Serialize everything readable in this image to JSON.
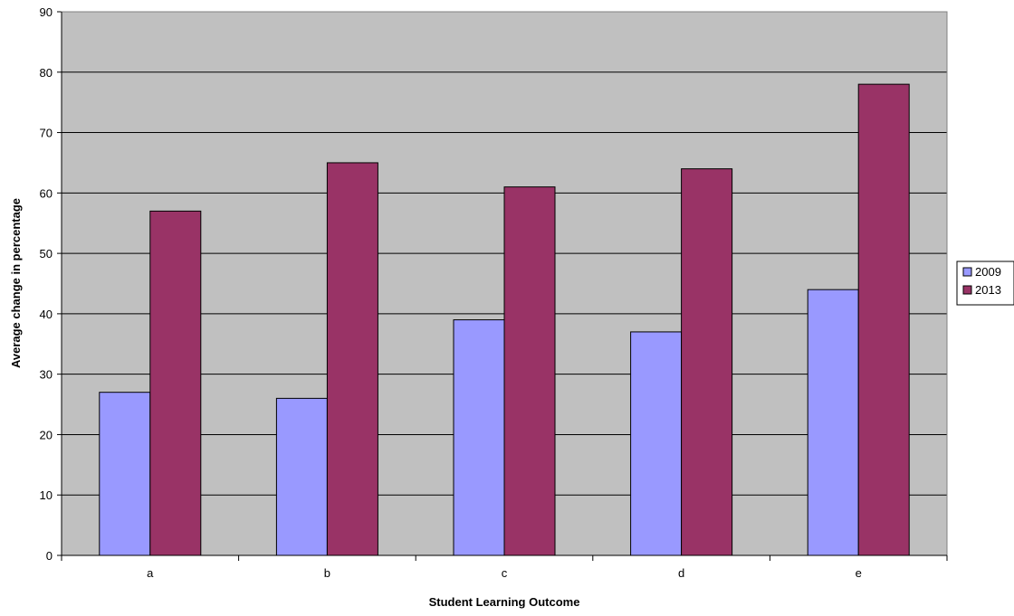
{
  "chart_data": {
    "type": "bar",
    "title": "",
    "xlabel": "Student Learning Outcome",
    "ylabel": "Average change in percentage",
    "categories": [
      "a",
      "b",
      "c",
      "d",
      "e"
    ],
    "series": [
      {
        "name": "2009",
        "values": [
          27,
          26,
          39,
          37,
          44
        ]
      },
      {
        "name": "2013",
        "values": [
          57,
          65,
          61,
          64,
          78
        ]
      }
    ],
    "ylim": [
      0,
      90
    ],
    "yticks": [
      0,
      10,
      20,
      30,
      40,
      50,
      60,
      70,
      80,
      90
    ],
    "grid": true,
    "legend": "right"
  },
  "colors": {
    "plot_background": "#C0C0C0",
    "series": [
      "#9999FF",
      "#993366"
    ],
    "gridline": "#000000"
  }
}
